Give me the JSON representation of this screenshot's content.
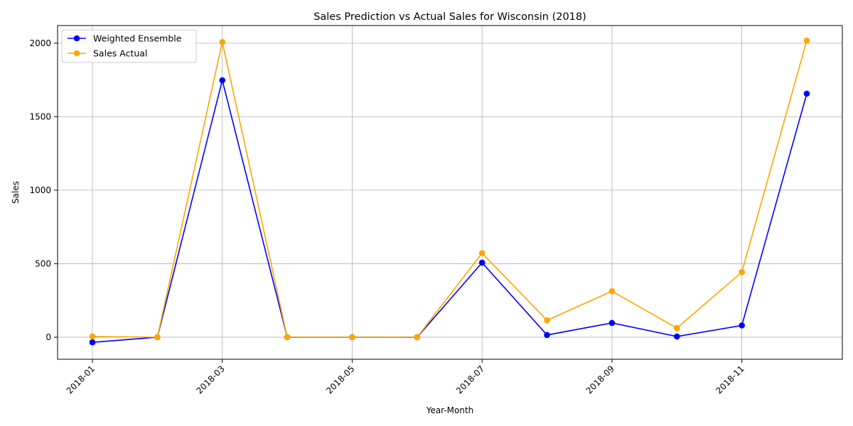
{
  "chart_data": {
    "type": "line",
    "title": "Sales Prediction vs Actual Sales for Wisconsin (2018)",
    "xlabel": "Year-Month",
    "ylabel": "Sales",
    "x": [
      "2018-01",
      "2018-02",
      "2018-03",
      "2018-04",
      "2018-05",
      "2018-06",
      "2018-07",
      "2018-08",
      "2018-09",
      "2018-10",
      "2018-11",
      "2018-12"
    ],
    "x_ticks": [
      "2018-01",
      "2018-03",
      "2018-05",
      "2018-07",
      "2018-09",
      "2018-11"
    ],
    "y_ticks": [
      0,
      500,
      1000,
      1500,
      2000
    ],
    "ylim": [
      -150,
      2120
    ],
    "grid": true,
    "legend_position": "top-left",
    "series": [
      {
        "name": "Weighted Ensemble",
        "color": "#0000ff",
        "values": [
          -35,
          0,
          1748,
          0,
          0,
          0,
          507,
          15,
          97,
          5,
          80,
          1657
        ]
      },
      {
        "name": "Sales Actual",
        "color": "#ffa500",
        "values": [
          5,
          0,
          2008,
          0,
          0,
          0,
          572,
          115,
          313,
          62,
          443,
          2018
        ]
      }
    ]
  }
}
